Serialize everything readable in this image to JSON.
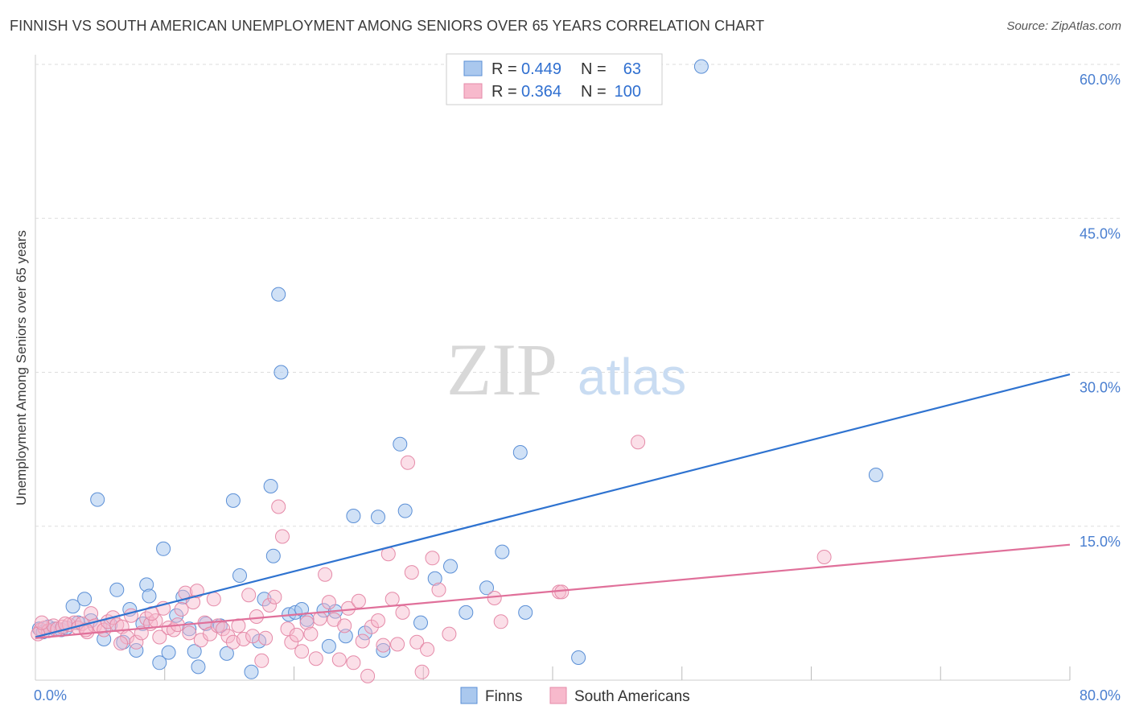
{
  "title": "FINNISH VS SOUTH AMERICAN UNEMPLOYMENT AMONG SENIORS OVER 65 YEARS CORRELATION CHART",
  "source": "Source: ZipAtlas.com",
  "watermark": {
    "part1": "ZIP",
    "part2": "atlas"
  },
  "legend_box": {
    "rows": [
      {
        "r_label": "R =",
        "r_value": "0.449",
        "n_label": "N =",
        "n_value": "63"
      },
      {
        "r_label": "R =",
        "r_value": "0.364",
        "n_label": "N =",
        "n_value": "100"
      }
    ]
  },
  "bottom_legend": [
    "Finns",
    "South Americans"
  ],
  "colors": {
    "finns_fill": "#aac8ee",
    "finns_stroke": "#5b8fd6",
    "finns_line": "#2f73d0",
    "sa_fill": "#f7b9cc",
    "sa_stroke": "#e58aa8",
    "sa_line": "#e0709a",
    "grid": "#dddddd",
    "tick_text": "#4a7fd0"
  },
  "chart_data": {
    "type": "scatter",
    "xlabel": "",
    "ylabel": "Unemployment Among Seniors over 65 years",
    "xlim": [
      0,
      80
    ],
    "ylim": [
      0,
      63
    ],
    "x_tick_labels": [
      "0.0%",
      "80.0%"
    ],
    "y_ticks": [
      15,
      30,
      45,
      60
    ],
    "y_tick_labels": [
      "15.0%",
      "30.0%",
      "45.0%",
      "60.0%"
    ],
    "grid": true,
    "series": [
      {
        "name": "Finns",
        "r": 0.449,
        "n": 63,
        "trend": [
          [
            0,
            4.2
          ],
          [
            80,
            29.8
          ]
        ],
        "points": [
          [
            0.3,
            5.0
          ],
          [
            0.6,
            4.7
          ],
          [
            1.0,
            5.2
          ],
          [
            1.5,
            5.0
          ],
          [
            2.0,
            4.9
          ],
          [
            2.4,
            5.1
          ],
          [
            2.9,
            7.2
          ],
          [
            3.3,
            5.6
          ],
          [
            3.8,
            7.9
          ],
          [
            4.3,
            5.8
          ],
          [
            4.8,
            17.6
          ],
          [
            5.3,
            4.0
          ],
          [
            5.8,
            5.4
          ],
          [
            6.3,
            8.8
          ],
          [
            6.8,
            3.7
          ],
          [
            7.3,
            6.9
          ],
          [
            7.8,
            2.9
          ],
          [
            8.3,
            5.5
          ],
          [
            8.6,
            9.3
          ],
          [
            8.8,
            8.2
          ],
          [
            9.6,
            1.7
          ],
          [
            9.9,
            12.8
          ],
          [
            10.3,
            2.7
          ],
          [
            10.9,
            6.3
          ],
          [
            11.4,
            8.1
          ],
          [
            11.9,
            5.0
          ],
          [
            12.3,
            2.8
          ],
          [
            12.6,
            1.3
          ],
          [
            13.2,
            5.5
          ],
          [
            14.3,
            5.3
          ],
          [
            14.8,
            2.6
          ],
          [
            15.3,
            17.5
          ],
          [
            15.8,
            10.2
          ],
          [
            16.7,
            0.8
          ],
          [
            17.3,
            3.8
          ],
          [
            17.7,
            7.9
          ],
          [
            18.2,
            18.9
          ],
          [
            18.4,
            12.1
          ],
          [
            18.8,
            37.6
          ],
          [
            19.0,
            30.0
          ],
          [
            19.6,
            6.4
          ],
          [
            20.1,
            6.6
          ],
          [
            20.6,
            6.9
          ],
          [
            21.0,
            5.9
          ],
          [
            22.3,
            6.8
          ],
          [
            22.7,
            3.3
          ],
          [
            23.2,
            6.7
          ],
          [
            24.0,
            4.3
          ],
          [
            24.6,
            16.0
          ],
          [
            25.5,
            4.6
          ],
          [
            26.5,
            15.9
          ],
          [
            26.9,
            2.9
          ],
          [
            28.2,
            23.0
          ],
          [
            28.6,
            16.5
          ],
          [
            29.8,
            5.6
          ],
          [
            30.9,
            9.9
          ],
          [
            32.1,
            11.1
          ],
          [
            33.3,
            6.6
          ],
          [
            34.9,
            9.0
          ],
          [
            36.1,
            12.5
          ],
          [
            37.5,
            22.2
          ],
          [
            37.9,
            6.6
          ],
          [
            42.0,
            2.2
          ],
          [
            51.5,
            59.8
          ],
          [
            65.0,
            20.0
          ]
        ]
      },
      {
        "name": "South Americans",
        "r": 0.364,
        "n": 100,
        "trend": [
          [
            0,
            4.1
          ],
          [
            80,
            13.2
          ]
        ],
        "points": [
          [
            0.4,
            4.9
          ],
          [
            0.7,
            5.1
          ],
          [
            1.0,
            4.8
          ],
          [
            1.4,
            5.3
          ],
          [
            1.7,
            5.0
          ],
          [
            2.1,
            5.2
          ],
          [
            2.6,
            5.4
          ],
          [
            3.0,
            5.6
          ],
          [
            3.3,
            5.1
          ],
          [
            3.6,
            5.5
          ],
          [
            4.0,
            4.7
          ],
          [
            4.3,
            6.5
          ],
          [
            4.6,
            5.3
          ],
          [
            5.0,
            5.2
          ],
          [
            5.3,
            4.9
          ],
          [
            5.6,
            5.7
          ],
          [
            6.0,
            6.1
          ],
          [
            6.3,
            5.4
          ],
          [
            6.7,
            5.2
          ],
          [
            7.1,
            4.2
          ],
          [
            7.4,
            6.3
          ],
          [
            7.8,
            3.7
          ],
          [
            8.2,
            4.6
          ],
          [
            8.6,
            6.0
          ],
          [
            8.9,
            5.5
          ],
          [
            9.3,
            5.8
          ],
          [
            9.6,
            4.2
          ],
          [
            9.9,
            7.0
          ],
          [
            10.3,
            5.1
          ],
          [
            10.7,
            4.9
          ],
          [
            11.0,
            5.4
          ],
          [
            11.3,
            6.9
          ],
          [
            11.6,
            8.5
          ],
          [
            11.9,
            4.6
          ],
          [
            12.2,
            7.6
          ],
          [
            12.5,
            8.7
          ],
          [
            12.8,
            3.9
          ],
          [
            13.1,
            5.6
          ],
          [
            13.5,
            4.5
          ],
          [
            13.8,
            7.9
          ],
          [
            14.1,
            5.3
          ],
          [
            14.5,
            5.0
          ],
          [
            14.9,
            4.3
          ],
          [
            15.3,
            3.7
          ],
          [
            15.7,
            5.3
          ],
          [
            16.1,
            4.0
          ],
          [
            16.5,
            8.3
          ],
          [
            16.8,
            4.3
          ],
          [
            17.1,
            6.2
          ],
          [
            17.5,
            1.9
          ],
          [
            17.8,
            4.1
          ],
          [
            18.1,
            7.3
          ],
          [
            18.5,
            8.1
          ],
          [
            18.8,
            16.9
          ],
          [
            19.1,
            14.0
          ],
          [
            19.5,
            5.0
          ],
          [
            19.8,
            3.7
          ],
          [
            20.2,
            4.4
          ],
          [
            20.6,
            2.8
          ],
          [
            21.0,
            5.6
          ],
          [
            21.3,
            4.5
          ],
          [
            21.7,
            2.1
          ],
          [
            22.0,
            6.0
          ],
          [
            22.4,
            10.3
          ],
          [
            22.7,
            7.6
          ],
          [
            23.1,
            5.9
          ],
          [
            23.5,
            2.0
          ],
          [
            23.9,
            5.3
          ],
          [
            24.2,
            7.0
          ],
          [
            24.6,
            1.7
          ],
          [
            25.0,
            7.7
          ],
          [
            25.3,
            3.8
          ],
          [
            25.7,
            0.4
          ],
          [
            26.0,
            5.2
          ],
          [
            26.5,
            5.8
          ],
          [
            26.9,
            3.4
          ],
          [
            27.3,
            12.3
          ],
          [
            27.6,
            7.9
          ],
          [
            28.0,
            3.5
          ],
          [
            28.4,
            6.6
          ],
          [
            28.8,
            21.2
          ],
          [
            29.1,
            10.5
          ],
          [
            29.5,
            3.7
          ],
          [
            29.9,
            0.8
          ],
          [
            30.3,
            3.0
          ],
          [
            30.7,
            11.9
          ],
          [
            31.2,
            8.8
          ],
          [
            32.0,
            4.5
          ],
          [
            35.5,
            8.0
          ],
          [
            36.0,
            5.7
          ],
          [
            40.5,
            8.6
          ],
          [
            40.7,
            8.6
          ],
          [
            46.6,
            23.2
          ],
          [
            61.0,
            12.0
          ],
          [
            0.2,
            4.5
          ],
          [
            0.5,
            5.6
          ],
          [
            2.3,
            5.5
          ],
          [
            3.9,
            4.9
          ],
          [
            6.6,
            3.6
          ],
          [
            9.0,
            6.5
          ]
        ]
      }
    ]
  }
}
